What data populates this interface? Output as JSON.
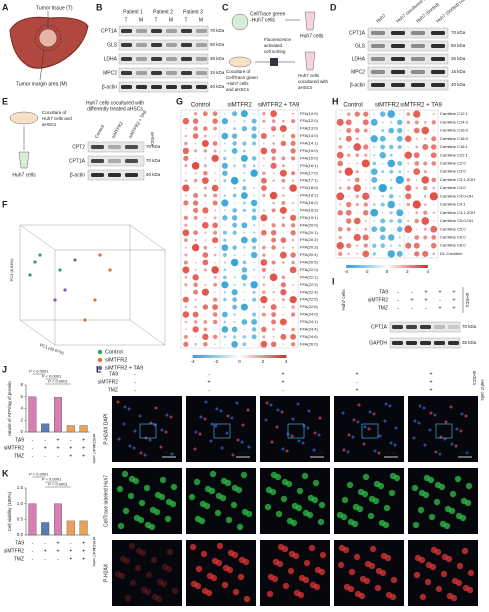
{
  "panels": [
    "A",
    "B",
    "C",
    "D",
    "E",
    "F",
    "G",
    "H",
    "I",
    "J",
    "K",
    "L"
  ],
  "A": {
    "tumor": "Tumor tissue (T)",
    "margin": "Tumor margin area (M)"
  },
  "B": {
    "patients": [
      "Patient 1",
      "Patient 2",
      "Patient 3"
    ],
    "lanes": [
      "T",
      "M",
      "T",
      "M",
      "T",
      "M"
    ],
    "proteins": [
      "CPT1A",
      "GLS",
      "LDHA",
      "MPC2",
      "β-actin"
    ],
    "sizes": [
      "70 kDa",
      "50 kDa",
      "35 kDa",
      "15 kDa",
      "40 kDa"
    ]
  },
  "C": {
    "top": [
      "CellTrace green",
      "-Huh7 cells"
    ],
    "sort": [
      "Fluorescence",
      "activated",
      "cell sorting"
    ],
    "coculture": [
      "Coculture of",
      "CellTrace green",
      "-Huh7 cells",
      "and aHSCs"
    ],
    "out1": "Huh7 cells",
    "out2": [
      "Huh7 cells",
      "cocultured with",
      "aHSCs"
    ]
  },
  "D": {
    "lanes": [
      "Huh7",
      "Huh7 cocultured with aHSCs",
      "Huh7 (Sorted)",
      "Huh7 (Sorted) cocultured with aHSCs"
    ],
    "proteins": [
      "CPT1A",
      "GLS",
      "LDHA",
      "MPC2",
      "β-actin"
    ],
    "sizes": [
      "70 kDa",
      "50 kDa",
      "35 kDa",
      "15 kDa",
      "40 kDa"
    ]
  },
  "E": {
    "left": [
      "Coculture of",
      "Huh7 cells and",
      "aHSCs"
    ],
    "bottom": "Huh7 cells",
    "title": [
      "Huh7 cells cocultured with",
      "differently treated aHSCs"
    ],
    "lanes": [
      "Control",
      "siMTFR2",
      "siMTFR2 + TA9"
    ],
    "side": "aHSCs",
    "proteins": [
      "CPT2",
      "CPT1A",
      "β-actin"
    ],
    "sizes": [
      "70 kDa",
      "70 kDa",
      "40 kDa"
    ]
  },
  "F": {
    "xlabel": "PC1 (42.67%)",
    "ylabel": "PC3 (8.84%)",
    "legend": [
      {
        "name": "Control",
        "color": "#2e9e6b"
      },
      {
        "name": "siMTFR2",
        "color": "#e0702a"
      },
      {
        "name": "siMTFR2 + TA9",
        "color": "#8a5bb5"
      }
    ]
  },
  "G": {
    "groups": [
      "Control",
      "siMTFR2",
      "siMTFR2 + TA9"
    ],
    "rows": [
      "FFA(10:0)",
      "FFA(12:0)",
      "FFA(13:0)",
      "FFA(14:0)",
      "FFA(14:1)",
      "FFA(15:0)",
      "FFA(16:0)",
      "FFA(16:1)",
      "FFA(17:0)",
      "FFA(17:1)",
      "FFA(18:0)",
      "FFA(18:1)",
      "FFA(18:2)",
      "FFA(18:3)",
      "FFA(19:1)",
      "FFA(20:0)",
      "FFA(20:1)",
      "FFA(20:2)",
      "FFA(20:3)",
      "FFA(20:4)",
      "FFA(20:5)",
      "FFA(22:0)",
      "FFA(22:1)",
      "FFA(22:2)",
      "FFA(22:4)",
      "FFA(22:5)",
      "FFA(22:6)",
      "FFA(24:0)",
      "FFA(24:1)",
      "FFA(24:4)",
      "FFA(24:6)",
      "FFA(26:0)"
    ],
    "scale": [
      -4,
      -2,
      0,
      2,
      4
    ]
  },
  "H": {
    "groups": [
      "Control",
      "siMTFR2",
      "siMTFR2 + TA9"
    ],
    "rows": [
      "Carnitine C12:1",
      "Carnitine C14:0",
      "Carnitine C16:0",
      "Carnitine C18:0",
      "Carnitine C18:1",
      "Carnitine C22:1",
      "Carnitine C2:0",
      "Carnitine C3:0",
      "Carnitine C3:1-2OH",
      "Carnitine C4:0",
      "Carnitine C4:0-OH",
      "Carnitine C4:1",
      "Carnitine C4:1-2OH",
      "Carnitine C5:0-OH",
      "Carnitine C5:0",
      "Carnitine C6:0",
      "Carnitine C8:0",
      "DL-Carnitine"
    ],
    "scale": [
      -4,
      -2,
      0,
      2,
      4
    ]
  },
  "I": {
    "rows": [
      {
        "name": "TA9",
        "signs": [
          "-",
          "-",
          "+",
          "+",
          "+"
        ]
      },
      {
        "name": "siMTFR2",
        "signs": [
          "-",
          "+",
          "+",
          "-",
          "+"
        ]
      },
      {
        "name": "TMZ",
        "signs": [
          "-",
          "-",
          "-",
          "+",
          "+"
        ]
      }
    ],
    "side": "aHSCs",
    "cells": "Huh7 cells",
    "proteins": [
      "CPT1A",
      "GAPDH"
    ],
    "sizes": [
      "70 kDa",
      "35 kDa"
    ]
  },
  "chart_data": [
    {
      "type": "bar",
      "ylabel": "nmole of ATP/mg of protein",
      "categories": [
        null,
        null,
        null,
        null,
        null
      ],
      "values": [
        6.0,
        1.4,
        5.9,
        1.1,
        1.1
      ],
      "colors": [
        "#d77fb5",
        "#5a7bb5",
        "#d77fb5",
        "#e8a25a",
        "#e8a25a"
      ],
      "ylim": [
        0,
        8
      ],
      "yticks": [
        0,
        2,
        4,
        6,
        8
      ],
      "annotations": [
        "P < 0.0001",
        "P < 0.0001",
        "P < 0.0001"
      ],
      "conditions": [
        {
          "name": "TA9",
          "signs": [
            "-",
            "-",
            "+",
            "-",
            "+"
          ]
        },
        {
          "name": "siMTFR2",
          "signs": [
            "-",
            "+",
            "+",
            "+",
            "+"
          ]
        },
        {
          "name": "TMZ",
          "signs": [
            "-",
            "-",
            "-",
            "+",
            "+"
          ]
        }
      ],
      "side": "aHSCs",
      "cells": "Huh7 cells"
    },
    {
      "type": "bar",
      "ylabel": "Cell viability (100%)",
      "categories": [
        null,
        null,
        null,
        null,
        null
      ],
      "values": [
        1.0,
        0.4,
        1.0,
        0.45,
        0.45
      ],
      "colors": [
        "#d77fb5",
        "#5a7bb5",
        "#d77fb5",
        "#e8a25a",
        "#e8a25a"
      ],
      "ylim": [
        0,
        1.5
      ],
      "yticks": [
        {
          "value": 0,
          "label": "0.0"
        },
        0.5,
        {
          "value": 1,
          "label": "1.0"
        },
        1.5
      ],
      "annotations": [
        "P < 0.0001",
        "P < 0.0001",
        "P < 0.0001"
      ],
      "conditions": [
        {
          "name": "TA9",
          "signs": [
            "-",
            "-",
            "+",
            "-",
            "+"
          ]
        },
        {
          "name": "siMTFR2",
          "signs": [
            "-",
            "+",
            "+",
            "+",
            "+"
          ]
        },
        {
          "name": "TMZ",
          "signs": [
            "-",
            "-",
            "-",
            "+",
            "+"
          ]
        }
      ],
      "side": "aHSCs",
      "cells": "Huh7 cells"
    }
  ],
  "L": {
    "rows": [
      {
        "name": "TA9",
        "signs": [
          "-",
          "-",
          "+",
          "+",
          "+"
        ]
      },
      {
        "name": "siMTFR2",
        "signs": [
          "-",
          "+",
          "+",
          "-",
          "+"
        ]
      },
      {
        "name": "TMZ",
        "signs": [
          "-",
          "-",
          "-",
          "+",
          "+"
        ]
      }
    ],
    "side": "aHSCs",
    "cells": "Huh7 cells",
    "channels": [
      "P-H2AX DAPI",
      "CellTrace labeled Huh7",
      "P-H2AX"
    ],
    "scale": "100 μm"
  }
}
